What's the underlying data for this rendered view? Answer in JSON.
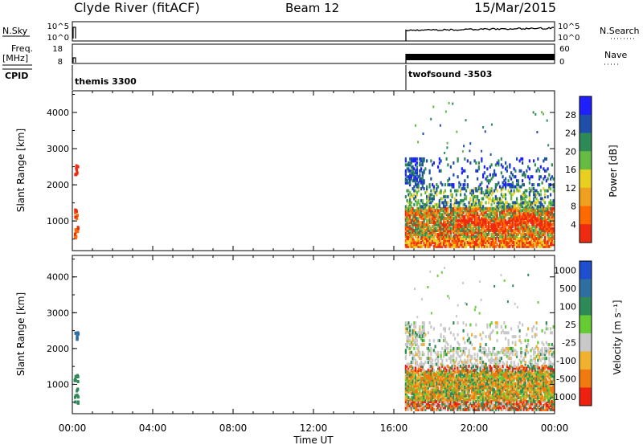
{
  "header": {
    "station": "Clyde River (fitACF)",
    "beam": "Beam 12",
    "date": "15/Mar/2015"
  },
  "params": {
    "nsky_label": "N.Sky",
    "nsky_ticks": [
      "10^5",
      "10^0"
    ],
    "nsearch_label": "N.Search",
    "nsearch_ticks": [
      "10^5",
      "10^0"
    ],
    "freq_label_top": "Freq.",
    "freq_label_bottom": "[MHz]",
    "freq_ticks": [
      "18",
      "8"
    ],
    "nave_label": "Nave",
    "nave_ticks": [
      "60",
      "0"
    ],
    "cpid_label": "CPID",
    "cpid_segments": [
      {
        "name": "themis 3300",
        "start_hour": 0.0
      },
      {
        "name": "twofsound -3503",
        "start_hour": 16.5
      }
    ]
  },
  "chart_data": [
    {
      "type": "heatmap",
      "name": "power-panel",
      "xlabel": "",
      "ylabel": "Slant Range [km]",
      "xlim": [
        0,
        24
      ],
      "ylim": [
        180,
        4600
      ],
      "yticks": [
        1000,
        2000,
        3000,
        4000
      ],
      "colorbar": {
        "label": "Power [dB]",
        "ticks": [
          "4",
          "8",
          "12",
          "16",
          "20",
          "24",
          "28"
        ],
        "colors": [
          "#1f1fff",
          "#1f4fa8",
          "#2e8b57",
          "#66bb44",
          "#e8d020",
          "#f0a020",
          "#ff6a00",
          "#ee2a10"
        ]
      }
    },
    {
      "type": "heatmap",
      "name": "velocity-panel",
      "xlabel": "Time UT",
      "ylabel": "Slant Range [km]",
      "xlim": [
        0,
        24
      ],
      "ylim": [
        180,
        4600
      ],
      "yticks": [
        1000,
        2000,
        3000,
        4000
      ],
      "xticks": [
        "00:00",
        "04:00",
        "08:00",
        "12:00",
        "16:00",
        "20:00",
        "00:00"
      ],
      "colorbar": {
        "label": "Velocity [m s⁻¹]",
        "ticks": [
          "1000",
          "500",
          "100",
          "25",
          "-25",
          "-100",
          "-500",
          "-1000"
        ],
        "colors": [
          "#1f4fcf",
          "#2f6f9f",
          "#2e8b57",
          "#66cc33",
          "#c8c8c8",
          "#f0b030",
          "#f07a10",
          "#ee2010"
        ]
      }
    }
  ]
}
